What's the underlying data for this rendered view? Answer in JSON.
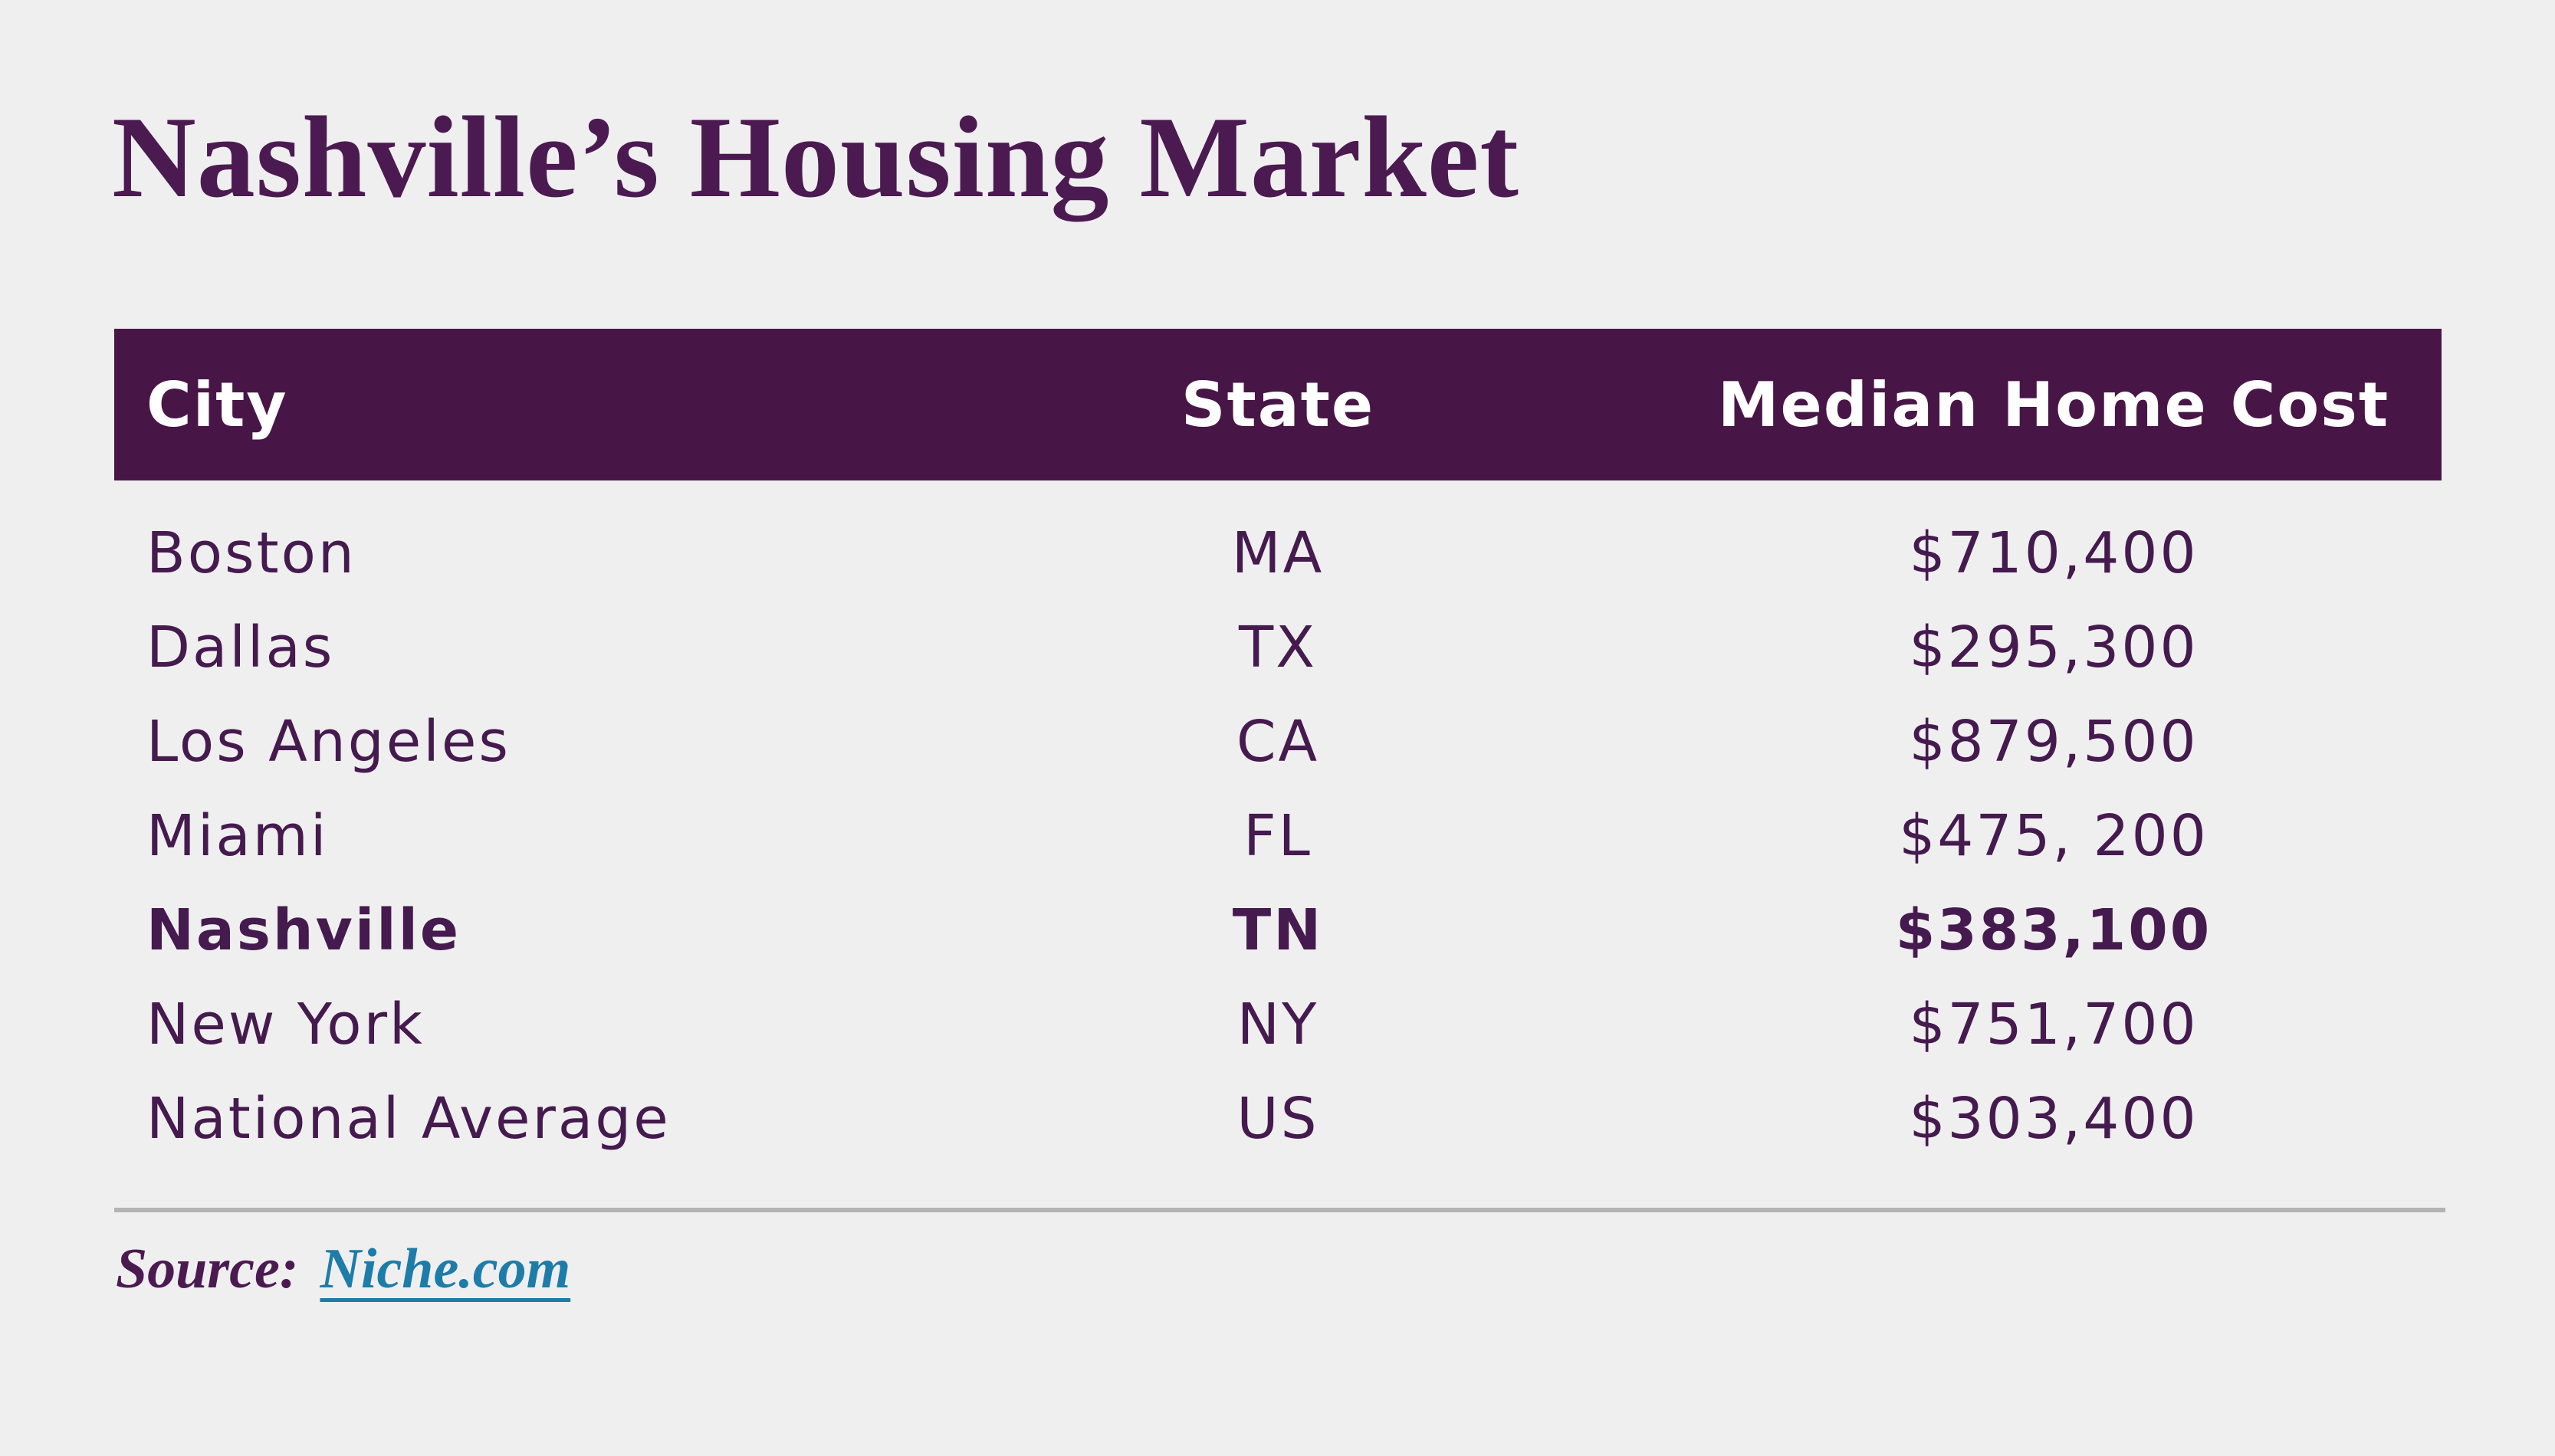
{
  "title": "Nashville’s Housing Market",
  "table": {
    "headers": {
      "city": "City",
      "state": "State",
      "cost": "Median Home Cost"
    },
    "rows": [
      {
        "city": "Boston",
        "state": "MA",
        "cost": "$710,400",
        "highlight": false
      },
      {
        "city": "Dallas",
        "state": "TX",
        "cost": "$295,300",
        "highlight": false
      },
      {
        "city": "Los Angeles",
        "state": "CA",
        "cost": "$879,500",
        "highlight": false
      },
      {
        "city": "Miami",
        "state": "FL",
        "cost": "$475, 200",
        "highlight": false
      },
      {
        "city": "Nashville",
        "state": "TN",
        "cost": "$383,100",
        "highlight": true
      },
      {
        "city": "New York",
        "state": "NY",
        "cost": "$751,700",
        "highlight": false
      },
      {
        "city": "National Average",
        "state": "US",
        "cost": "$303,400",
        "highlight": false
      }
    ]
  },
  "source": {
    "label": "Source:",
    "link_text": "Niche.com"
  },
  "colors": {
    "background": "#f0eff0",
    "title_purple": "#4b1a51",
    "header_background": "#481646",
    "header_text": "#ffffff",
    "row_text": "#451a4e",
    "divider_gray": "#b4b3b4",
    "link_teal": "#1d7ca8"
  },
  "chart_data": {
    "type": "table",
    "title": "Nashville’s Housing Market",
    "columns": [
      "City",
      "State",
      "Median Home Cost"
    ],
    "rows": [
      [
        "Boston",
        "MA",
        "$710,400"
      ],
      [
        "Dallas",
        "TX",
        "$295,300"
      ],
      [
        "Los Angeles",
        "CA",
        "$879,500"
      ],
      [
        "Miami",
        "FL",
        "$475, 200"
      ],
      [
        "Nashville",
        "TN",
        "$383,100"
      ],
      [
        "New York",
        "NY",
        "$751,700"
      ],
      [
        "National Average",
        "US",
        "$303,400"
      ]
    ],
    "median_home_cost_usd": [
      710400,
      295300,
      879500,
      475200,
      383100,
      751700,
      303400
    ],
    "highlighted_row": "Nashville",
    "source": "Niche.com"
  }
}
